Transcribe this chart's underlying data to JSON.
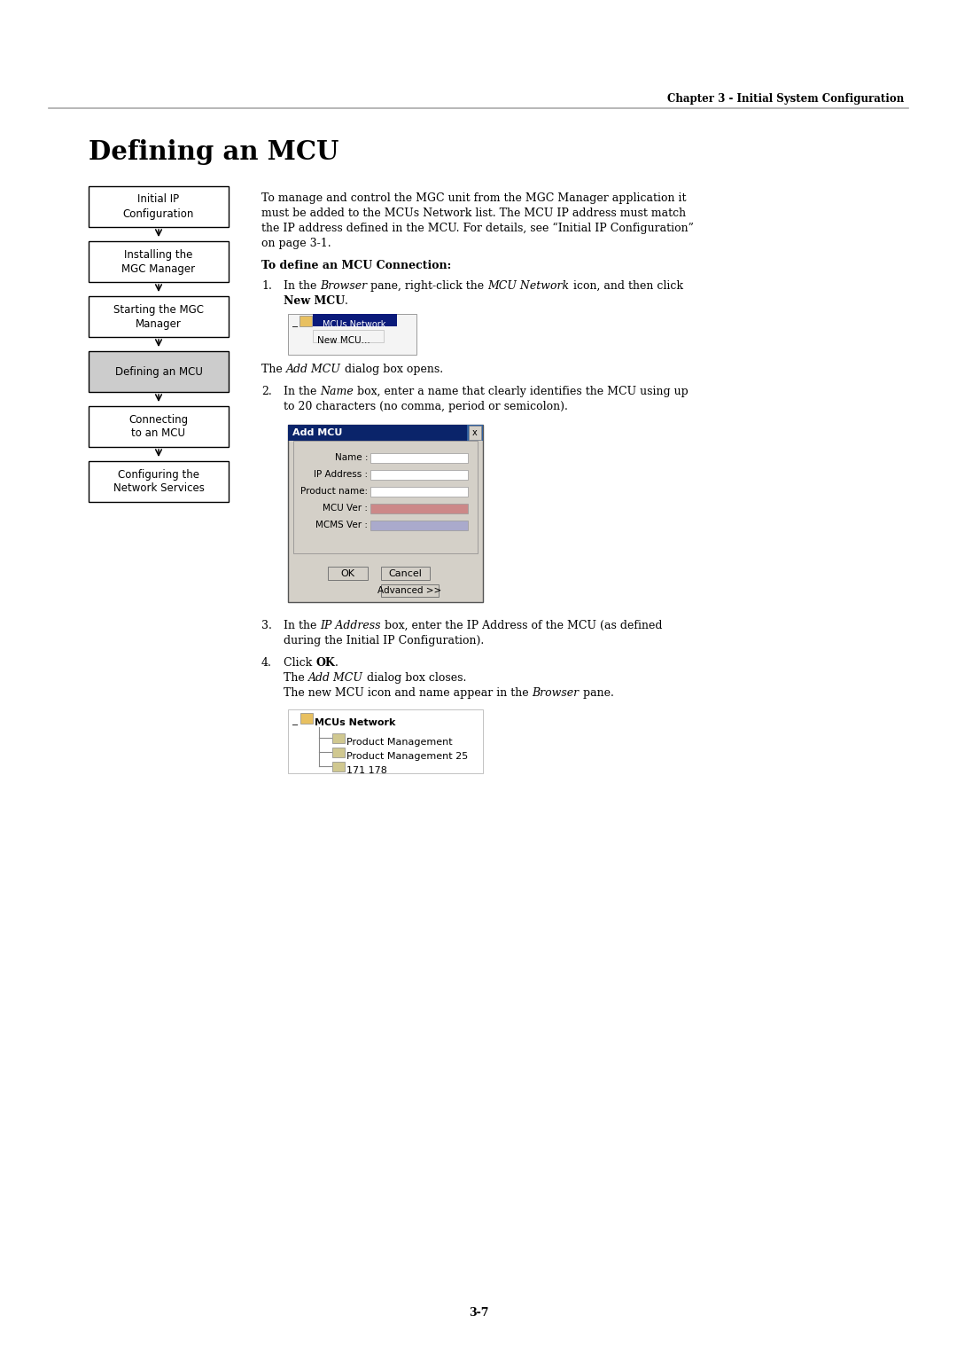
{
  "page_title": "Defining an MCU",
  "chapter_header": "Chapter 3 - Initial System Configuration",
  "page_number": "3-7",
  "background_color": "#ffffff",
  "flowchart_boxes": [
    {
      "text": "Initial IP\nConfiguration",
      "highlight": false
    },
    {
      "text": "Installing the\nMGC Manager",
      "highlight": false
    },
    {
      "text": "Starting the MGC\nManager",
      "highlight": false
    },
    {
      "text": "Defining an MCU",
      "highlight": true
    },
    {
      "text": "Connecting\nto an MCU",
      "highlight": false
    },
    {
      "text": "Configuring the\nNetwork Services",
      "highlight": false
    }
  ],
  "intro_lines": [
    "To manage and control the MGC unit from the MGC Manager application it",
    "must be added to the MCUs Network list. The MCU IP address must match",
    "the IP address defined in the MCU. For details, see “Initial IP Configuration”",
    "on page 3-1."
  ],
  "section_heading": "To define an MCU Connection:",
  "dialog_title": "Add MCU",
  "dialog_fields": [
    "Name :",
    "IP Address :",
    "Product name:",
    "MCU Ver :",
    "MCMS Ver :"
  ],
  "dialog_field_colors": [
    "#ffffff",
    "#ffffff",
    "#ffffff",
    "#cc8888",
    "#aaaacc"
  ],
  "browser_items": [
    "MCUs Network",
    "Product Management",
    "Product Management 25",
    "171 178"
  ]
}
